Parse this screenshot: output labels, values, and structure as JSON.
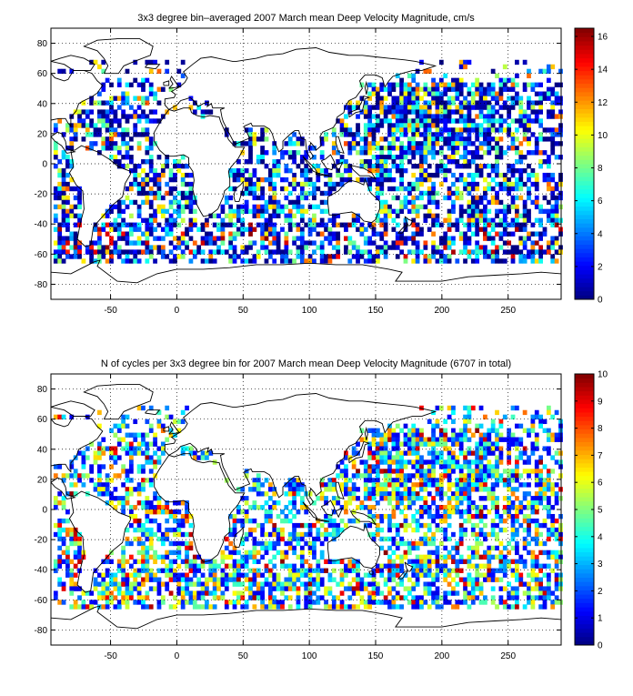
{
  "chart_data": [
    {
      "type": "heatmap",
      "title": "3x3 degree bin–averaged 2007 March mean Deep Velocity Magnitude, cm/s",
      "xlabel": "",
      "ylabel": "",
      "xlim": [
        -95,
        290
      ],
      "ylim": [
        -90,
        90
      ],
      "x_ticks": [
        -50,
        0,
        50,
        100,
        150,
        200,
        250
      ],
      "y_ticks": [
        80,
        60,
        40,
        20,
        0,
        -20,
        -40,
        -60,
        -80
      ],
      "grid": true,
      "bin_size_deg": 3,
      "colorbar": {
        "colormap": "jet",
        "range": [
          0,
          16.5
        ],
        "ticks": [
          0,
          2,
          4,
          6,
          8,
          10,
          12,
          14,
          16
        ]
      }
    },
    {
      "type": "heatmap",
      "title": "N of cycles per 3x3 degree bin for 2007 March mean Deep Velocity Magnitude (6707 in total)",
      "xlabel": "",
      "ylabel": "",
      "xlim": [
        -95,
        290
      ],
      "ylim": [
        -90,
        90
      ],
      "x_ticks": [
        -50,
        0,
        50,
        100,
        150,
        200,
        250
      ],
      "y_ticks": [
        80,
        60,
        40,
        20,
        0,
        -20,
        -40,
        -60,
        -80
      ],
      "grid": true,
      "bin_size_deg": 3,
      "total_cycles": 6707,
      "colorbar": {
        "colormap": "jet",
        "range": [
          0,
          10
        ],
        "ticks": [
          0,
          1,
          2,
          3,
          4,
          5,
          6,
          7,
          8,
          9,
          10
        ]
      }
    }
  ]
}
